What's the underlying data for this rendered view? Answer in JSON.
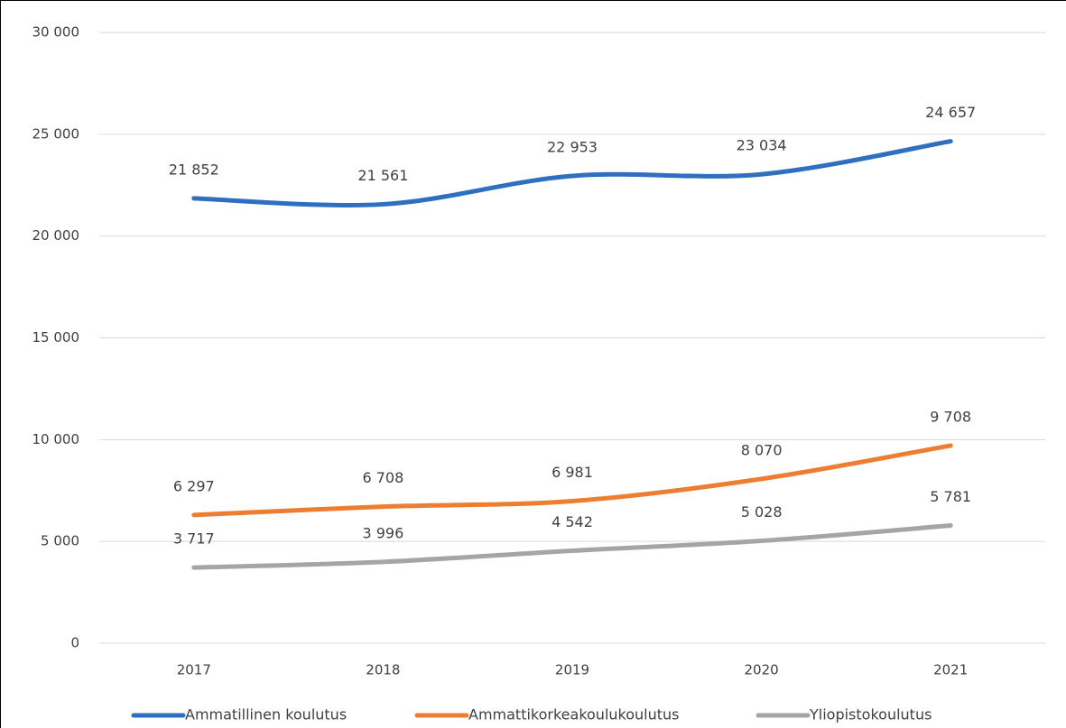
{
  "chart_data": {
    "type": "line",
    "categories": [
      "2017",
      "2018",
      "2019",
      "2020",
      "2021"
    ],
    "series": [
      {
        "name": "Ammatillinen koulutus",
        "color": "#2f6fbf",
        "values": [
          21852,
          21561,
          22953,
          23034,
          24657
        ],
        "value_labels": [
          "21 852",
          "21 561",
          "22 953",
          "23 034",
          "24 657"
        ]
      },
      {
        "name": "Ammattikorkeakoulukoulutus",
        "color": "#ed7d31",
        "values": [
          6297,
          6708,
          6981,
          8070,
          9708
        ],
        "value_labels": [
          "6 297",
          "6 708",
          "6 981",
          "8 070",
          "9 708"
        ]
      },
      {
        "name": "Yliopistokoulutus",
        "color": "#a5a5a5",
        "values": [
          3717,
          3996,
          4542,
          5028,
          5781
        ],
        "value_labels": [
          "3 717",
          "3 996",
          "4 542",
          "5 028",
          "5 781"
        ]
      }
    ],
    "ylim": [
      0,
      30000
    ],
    "yticks": [
      0,
      {
        "value": 5000,
        "label": "5 000"
      },
      {
        "value": 10000,
        "label": "10 000"
      },
      {
        "value": 15000,
        "label": "15 000"
      },
      {
        "value": 20000,
        "label": "20 000"
      },
      {
        "value": 25000,
        "label": "25 000"
      },
      {
        "value": 30000,
        "label": "30 000"
      }
    ],
    "grid": true,
    "legend": "bottom"
  }
}
